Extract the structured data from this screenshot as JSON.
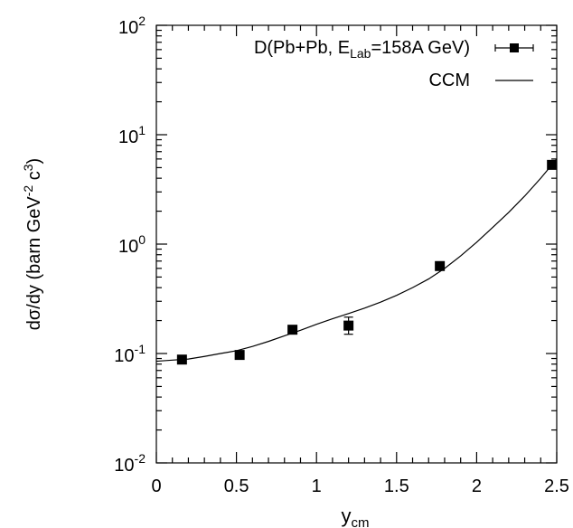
{
  "chart_data": {
    "type": "scatter",
    "xlabel": {
      "main": "y",
      "sub": "cm"
    },
    "ylabel": {
      "main": "dσ/dy (barn GeV",
      "sup1": "-2",
      "mid": " c",
      "sup2": "3",
      "end": ")"
    },
    "xlim": [
      0,
      2.5
    ],
    "ylim": [
      0.01,
      100
    ],
    "yscale": "log",
    "grid": false,
    "legend_position": "top-right",
    "x_ticks": [
      "0",
      "0.5",
      "1",
      "1.5",
      "2",
      "2.5"
    ],
    "y_ticks": [
      {
        "base": "10",
        "exp": "-2",
        "value": 0.01
      },
      {
        "base": "10",
        "exp": "-1",
        "value": 0.1
      },
      {
        "base": "10",
        "exp": "0",
        "value": 1
      },
      {
        "base": "10",
        "exp": "1",
        "value": 10
      },
      {
        "base": "10",
        "exp": "2",
        "value": 100
      }
    ],
    "series": [
      {
        "name": {
          "pre": "D(Pb+Pb, E",
          "sub": "Lab",
          "post": "=158A GeV)"
        },
        "kind": "points",
        "marker": "filled-square",
        "x": [
          0.16,
          0.52,
          0.85,
          1.2,
          1.77,
          2.47
        ],
        "y": [
          0.088,
          0.097,
          0.165,
          0.18,
          0.63,
          5.3
        ],
        "y_err_low": [
          0,
          0,
          0,
          0.03,
          0,
          0
        ],
        "y_err_high": [
          0,
          0,
          0,
          0.035,
          0,
          0
        ]
      },
      {
        "name": "CCM",
        "kind": "line",
        "x": [
          0.0,
          0.1,
          0.2,
          0.3,
          0.4,
          0.5,
          0.6,
          0.7,
          0.8,
          0.9,
          1.0,
          1.1,
          1.2,
          1.3,
          1.4,
          1.5,
          1.6,
          1.7,
          1.8,
          1.9,
          2.0,
          2.1,
          2.2,
          2.3,
          2.4,
          2.5
        ],
        "y": [
          0.085,
          0.087,
          0.089,
          0.094,
          0.1,
          0.106,
          0.116,
          0.129,
          0.145,
          0.163,
          0.185,
          0.208,
          0.232,
          0.26,
          0.295,
          0.34,
          0.4,
          0.48,
          0.6,
          0.78,
          1.04,
          1.42,
          1.95,
          2.75,
          4.0,
          6.0
        ]
      }
    ]
  }
}
